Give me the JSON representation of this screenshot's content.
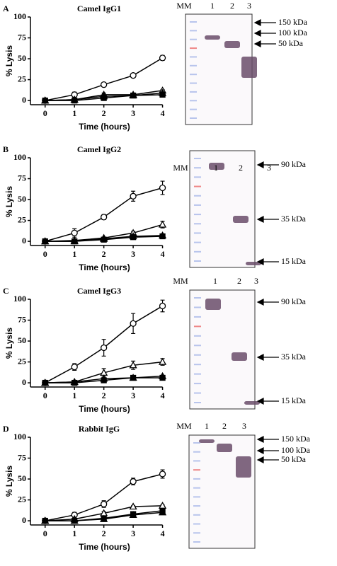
{
  "panels": [
    "A",
    "B",
    "C",
    "D"
  ],
  "chart_data": [
    {
      "type": "line",
      "title": "Camel IgG1",
      "x_label": "Time (hours)",
      "y_label": "% Lysis",
      "x": [
        0,
        1,
        2,
        3,
        4
      ],
      "xlim": [
        -0.5,
        4.3
      ],
      "xticks": [
        0,
        1,
        2,
        3,
        4
      ],
      "ylim": [
        -5,
        100
      ],
      "yticks": [
        0,
        25,
        50,
        75,
        100
      ],
      "series": [
        {
          "marker": "circle",
          "filled": false,
          "color": "#000000",
          "values": [
            0,
            7,
            19,
            30,
            51
          ],
          "errors": [
            2,
            3,
            1,
            1,
            3
          ]
        },
        {
          "marker": "triangle",
          "filled": false,
          "color": "#000000",
          "values": [
            0,
            1,
            7,
            7,
            12
          ],
          "errors": [
            1,
            1,
            2,
            1,
            1
          ]
        },
        {
          "marker": "square",
          "filled": true,
          "color": "#000000",
          "values": [
            0,
            0,
            3,
            6,
            7
          ]
        },
        {
          "marker": "triangle",
          "filled": true,
          "color": "#000000",
          "values": [
            0,
            1,
            5,
            6,
            9
          ]
        }
      ]
    },
    {
      "type": "line",
      "title": "Camel IgG2",
      "x_label": "Time (hours)",
      "y_label": "% Lysis",
      "x": [
        0,
        1,
        2,
        3,
        4
      ],
      "xlim": [
        -0.5,
        4.3
      ],
      "xticks": [
        0,
        1,
        2,
        3,
        4
      ],
      "ylim": [
        -5,
        100
      ],
      "yticks": [
        0,
        25,
        50,
        75,
        100
      ],
      "series": [
        {
          "marker": "circle",
          "filled": false,
          "color": "#000000",
          "values": [
            0,
            10,
            29,
            54,
            64
          ],
          "errors": [
            2,
            5,
            3,
            6,
            8
          ]
        },
        {
          "marker": "triangle",
          "filled": false,
          "color": "#000000",
          "values": [
            0,
            1,
            4,
            10,
            20
          ],
          "errors": [
            1,
            1,
            1,
            2,
            4
          ]
        },
        {
          "marker": "square",
          "filled": true,
          "color": "#000000",
          "values": [
            0,
            0,
            2,
            5,
            6
          ]
        },
        {
          "marker": "triangle",
          "filled": true,
          "color": "#000000",
          "values": [
            0,
            0,
            3,
            6,
            7
          ]
        }
      ]
    },
    {
      "type": "line",
      "title": "Camel IgG3",
      "x_label": "Time (hours)",
      "y_label": "% Lysis",
      "x": [
        0,
        1,
        2,
        3,
        4
      ],
      "xlim": [
        -0.5,
        4.3
      ],
      "xticks": [
        0,
        1,
        2,
        3,
        4
      ],
      "ylim": [
        -5,
        100
      ],
      "yticks": [
        0,
        25,
        50,
        75,
        100
      ],
      "series": [
        {
          "marker": "circle",
          "filled": false,
          "color": "#000000",
          "values": [
            0,
            19,
            42,
            71,
            92
          ],
          "errors": [
            2,
            4,
            10,
            12,
            7
          ]
        },
        {
          "marker": "triangle",
          "filled": false,
          "color": "#000000",
          "values": [
            0,
            1,
            12,
            21,
            25
          ],
          "errors": [
            1,
            1,
            5,
            5,
            4
          ]
        },
        {
          "marker": "square",
          "filled": true,
          "color": "#000000",
          "values": [
            0,
            0,
            3,
            6,
            6
          ]
        },
        {
          "marker": "triangle",
          "filled": true,
          "color": "#000000",
          "values": [
            0,
            1,
            5,
            6,
            8
          ]
        }
      ]
    },
    {
      "type": "line",
      "title": "Rabbit IgG",
      "x_label": "Time (hours)",
      "y_label": "% Lysis",
      "x": [
        0,
        1,
        2,
        3,
        4
      ],
      "xlim": [
        -0.5,
        4.3
      ],
      "xticks": [
        0,
        1,
        2,
        3,
        4
      ],
      "ylim": [
        -5,
        100
      ],
      "yticks": [
        0,
        25,
        50,
        75,
        100
      ],
      "series": [
        {
          "marker": "circle",
          "filled": false,
          "color": "#000000",
          "values": [
            0,
            7,
            20,
            47,
            56
          ],
          "errors": [
            2,
            3,
            4,
            4,
            5
          ]
        },
        {
          "marker": "triangle",
          "filled": false,
          "color": "#000000",
          "values": [
            0,
            2,
            9,
            17,
            18
          ],
          "errors": [
            1,
            1,
            2,
            1,
            1
          ]
        },
        {
          "marker": "square",
          "filled": true,
          "color": "#000000",
          "values": [
            0,
            0,
            3,
            8,
            12
          ]
        },
        {
          "marker": "triangle",
          "filled": true,
          "color": "#000000",
          "values": [
            0,
            0,
            2,
            7,
            10
          ]
        }
      ]
    }
  ],
  "gels": [
    {
      "lanes": [
        "MM",
        "1",
        "2",
        "3"
      ],
      "markers": [
        "150 kDa",
        "100 kDa",
        "50 kDa"
      ]
    },
    {
      "lanes": [
        "MM",
        "1",
        "2",
        "3"
      ],
      "markers": [
        "90 kDa",
        "35 kDa",
        "15 kDa"
      ]
    },
    {
      "lanes": [
        "MM",
        "1",
        "2",
        "3"
      ],
      "markers": [
        "90 kDa",
        "35 kDa",
        "15 kDa"
      ]
    },
    {
      "lanes": [
        "MM",
        "1",
        "2",
        "3"
      ],
      "markers": [
        "150 kDa",
        "100 kDa",
        "50 kDa"
      ]
    }
  ]
}
